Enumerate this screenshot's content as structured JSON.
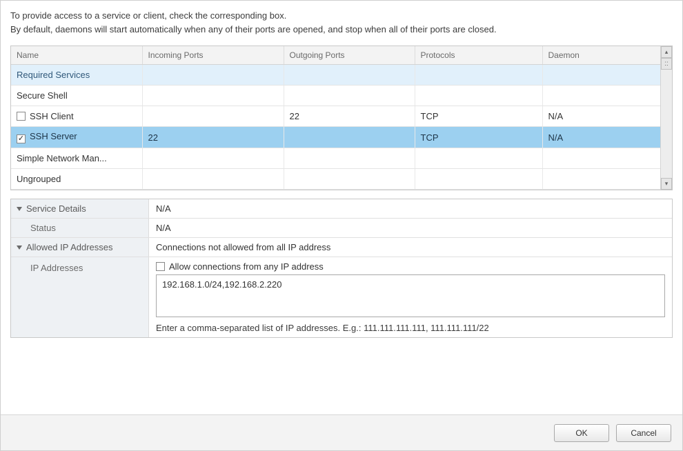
{
  "intro": {
    "line1": "To provide access to a service or client, check the corresponding box.",
    "line2": "By default, daemons will start automatically when any of their ports are opened, and stop when all of their ports are closed."
  },
  "columns": {
    "name": "Name",
    "incoming": "Incoming Ports",
    "outgoing": "Outgoing Ports",
    "protocols": "Protocols",
    "daemon": "Daemon",
    "widths": {
      "name": 190,
      "incoming": 205,
      "outgoing": 190,
      "protocols": 185,
      "daemon": 170
    }
  },
  "rows": [
    {
      "type": "group",
      "name": "Required Services"
    },
    {
      "type": "group-plain",
      "name": "Secure Shell"
    },
    {
      "type": "item",
      "checked": false,
      "name": "SSH Client",
      "incoming": "",
      "outgoing": "22",
      "protocols": "TCP",
      "daemon": "N/A"
    },
    {
      "type": "item-selected",
      "checked": true,
      "name": "SSH Server",
      "incoming": "22",
      "outgoing": "",
      "protocols": "TCP",
      "daemon": "N/A"
    },
    {
      "type": "group-plain",
      "name": "Simple Network Man..."
    },
    {
      "type": "group-plain",
      "name": "Ungrouped"
    }
  ],
  "details": {
    "service_details_label": "Service Details",
    "service_details_value": "N/A",
    "status_label": "Status",
    "status_value": "N/A",
    "allowed_ip_label": "Allowed IP Addresses",
    "allowed_ip_value": "Connections not allowed from all IP address",
    "ip_addresses_label": "IP Addresses",
    "allow_any_label": "Allow connections from any IP address",
    "allow_any_checked": false,
    "ip_textarea_value": "192.168.1.0/24,192.168.2.220",
    "hint": "Enter a comma-separated list of IP addresses. E.g.: 111.111.111.111, 111.111.111/22"
  },
  "footer": {
    "ok": "OK",
    "cancel": "Cancel"
  },
  "colors": {
    "group_bg": "#e1f0fb",
    "selected_bg": "#9cd0f0",
    "header_bg": "#f3f3f3",
    "border": "#c8c8c8"
  }
}
